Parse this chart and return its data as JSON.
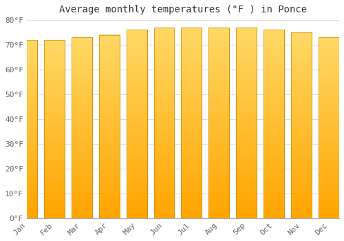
{
  "title": "Average monthly temperatures (°F ) in Ponce",
  "months": [
    "Jan",
    "Feb",
    "Mar",
    "Apr",
    "May",
    "Jun",
    "Jul",
    "Aug",
    "Sep",
    "Oct",
    "Nov",
    "Dec"
  ],
  "values": [
    72,
    72,
    73,
    74,
    76,
    77,
    77,
    77,
    77,
    76,
    75,
    73
  ],
  "bar_color_bottom": "#FFA500",
  "bar_color_top": "#FFD966",
  "background_color": "#FFFFFF",
  "ylim": [
    0,
    80
  ],
  "yticks": [
    0,
    10,
    20,
    30,
    40,
    50,
    60,
    70,
    80
  ],
  "ytick_labels": [
    "0°F",
    "10°F",
    "20°F",
    "30°F",
    "40°F",
    "50°F",
    "60°F",
    "70°F",
    "80°F"
  ],
  "grid_color": "#DDDDDD",
  "title_fontsize": 10,
  "tick_fontsize": 8,
  "bar_edge_color": "#CC8800",
  "bar_width": 0.75,
  "tick_color": "#666666"
}
